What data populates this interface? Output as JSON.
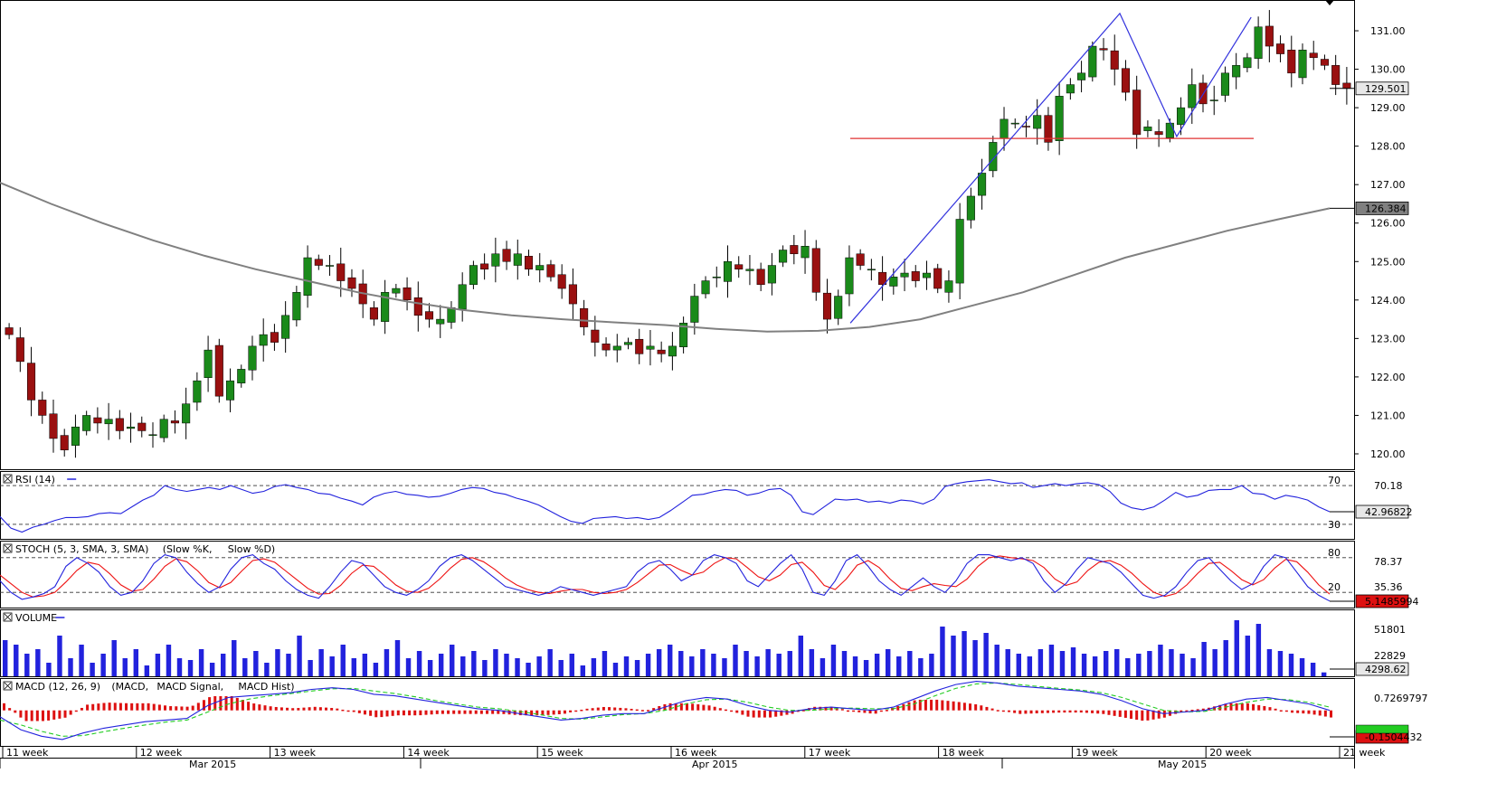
{
  "chart_data": [
    {
      "type": "candlestick",
      "panel": "price",
      "ylim": [
        119.6,
        131.8
      ],
      "yticks": [
        "131.00",
        "130.00",
        "129.00",
        "128.00",
        "127.00",
        "126.00",
        "125.00",
        "124.00",
        "123.00",
        "122.00",
        "121.00",
        "120.00"
      ],
      "ytick_values": [
        131,
        130,
        129,
        128,
        127,
        126,
        125,
        124,
        123,
        122,
        121,
        120
      ],
      "last_price_label": "129.501",
      "last_price": 129.501,
      "ma_label": "126.384",
      "ma_value": 126.384,
      "ma_path": [
        127.05,
        126.5,
        126.0,
        125.55,
        125.15,
        124.8,
        124.5,
        124.2,
        123.95,
        123.75,
        123.6,
        123.5,
        123.42,
        123.35,
        123.25,
        123.18,
        123.2,
        123.3,
        123.5,
        123.85,
        124.2,
        124.65,
        125.1,
        125.45,
        125.8,
        126.1,
        126.384
      ],
      "support_level": 128.2,
      "pattern_points": [
        {
          "x": 0.628,
          "y": 123.4
        },
        {
          "x": 0.827,
          "y": 131.45
        },
        {
          "x": 0.869,
          "y": 128.25
        },
        {
          "x": 0.924,
          "y": 131.35
        }
      ],
      "candles_closes": [
        123.1,
        122.4,
        121.4,
        121.0,
        120.4,
        120.1,
        120.7,
        121.0,
        120.8,
        120.9,
        120.6,
        120.7,
        120.6,
        120.5,
        120.9,
        120.8,
        121.3,
        121.9,
        122.7,
        121.5,
        121.9,
        122.2,
        122.8,
        123.1,
        122.9,
        123.6,
        124.2,
        125.1,
        124.9,
        124.9,
        124.5,
        124.3,
        123.9,
        123.5,
        124.2,
        124.3,
        124.0,
        123.6,
        123.5,
        123.5,
        123.8,
        124.4,
        124.9,
        124.8,
        125.2,
        125.0,
        125.2,
        124.8,
        124.9,
        124.6,
        124.3,
        123.9,
        123.3,
        122.9,
        122.7,
        122.8,
        122.9,
        122.6,
        122.8,
        122.6,
        122.8,
        123.4,
        124.1,
        124.5,
        124.6,
        125.0,
        124.8,
        124.8,
        124.4,
        124.9,
        125.3,
        125.2,
        125.4,
        124.2,
        123.5,
        124.1,
        125.1,
        124.9,
        124.8,
        124.4,
        124.6,
        124.7,
        124.5,
        124.7,
        124.3,
        124.5,
        126.1,
        126.7,
        127.3,
        128.1,
        128.7,
        128.6,
        128.5,
        128.8,
        128.1,
        129.3,
        129.6,
        129.9,
        130.6,
        130.5,
        130.0,
        129.4,
        128.3,
        128.5,
        128.3,
        128.6,
        129.0,
        129.6,
        129.1,
        129.2,
        129.9,
        130.1,
        130.3,
        131.1,
        130.6,
        130.4,
        129.9,
        130.5,
        130.3,
        130.1,
        129.6,
        129.5
      ],
      "tooltip_label": "Last Price"
    },
    {
      "type": "line",
      "panel": "rsi",
      "title": "RSI (14)",
      "levels": [
        "70",
        "30"
      ],
      "ytick": "70.18",
      "current_label": "42.96822",
      "ylim": [
        15,
        85
      ],
      "values": [
        38,
        26,
        22,
        27,
        30,
        34,
        37,
        37,
        38,
        41,
        42,
        41,
        48,
        55,
        60,
        70,
        66,
        64,
        66,
        68,
        66,
        70,
        66,
        62,
        64,
        69,
        71,
        68,
        66,
        62,
        61,
        57,
        54,
        50,
        58,
        62,
        64,
        61,
        60,
        58,
        59,
        62,
        66,
        68,
        67,
        63,
        61,
        57,
        54,
        50,
        44,
        38,
        33,
        31,
        36,
        37,
        38,
        36,
        37,
        35,
        37,
        44,
        52,
        60,
        61,
        64,
        66,
        65,
        60,
        62,
        66,
        67,
        60,
        43,
        40,
        48,
        56,
        55,
        56,
        53,
        54,
        52,
        55,
        54,
        51,
        56,
        69,
        72,
        74,
        75,
        76,
        74,
        72,
        73,
        68,
        70,
        72,
        70,
        72,
        73,
        71,
        64,
        52,
        47,
        45,
        48,
        55,
        63,
        58,
        60,
        65,
        66,
        66,
        70,
        62,
        61,
        56,
        60,
        58,
        55,
        48,
        43
      ]
    },
    {
      "type": "line",
      "panel": "stoch",
      "title": "STOCH (5, 3, SMA, 3, SMA)",
      "series": [
        {
          "name": "Slow %K",
          "color": "#2222dd"
        },
        {
          "name": "Slow %D",
          "color": "#ee1111"
        }
      ],
      "levels": [
        "80",
        "20"
      ],
      "ytick_top": "78.37",
      "ytick_mid": "35.36",
      "current_label": "5.1485994",
      "k_values": [
        40,
        20,
        8,
        12,
        18,
        30,
        65,
        80,
        70,
        55,
        30,
        15,
        20,
        40,
        70,
        85,
        80,
        55,
        35,
        20,
        30,
        60,
        80,
        85,
        70,
        60,
        40,
        25,
        15,
        10,
        30,
        55,
        75,
        70,
        50,
        30,
        20,
        15,
        25,
        40,
        65,
        80,
        85,
        75,
        60,
        45,
        30,
        25,
        20,
        15,
        20,
        30,
        25,
        20,
        15,
        20,
        25,
        30,
        55,
        70,
        75,
        60,
        40,
        50,
        75,
        85,
        80,
        70,
        40,
        30,
        50,
        70,
        85,
        60,
        20,
        15,
        40,
        75,
        85,
        65,
        40,
        25,
        15,
        30,
        45,
        30,
        20,
        40,
        70,
        85,
        85,
        80,
        75,
        80,
        70,
        40,
        20,
        35,
        60,
        80,
        75,
        70,
        55,
        35,
        15,
        10,
        15,
        30,
        55,
        75,
        80,
        60,
        40,
        25,
        35,
        65,
        85,
        80,
        55,
        30,
        15,
        5
      ],
      "d_values": [
        50,
        35,
        20,
        12,
        14,
        20,
        38,
        58,
        72,
        68,
        52,
        33,
        22,
        25,
        43,
        65,
        78,
        73,
        57,
        37,
        28,
        37,
        57,
        75,
        78,
        72,
        57,
        42,
        27,
        17,
        18,
        32,
        53,
        67,
        65,
        50,
        33,
        22,
        20,
        27,
        43,
        62,
        77,
        80,
        73,
        60,
        45,
        33,
        25,
        20,
        18,
        22,
        25,
        25,
        20,
        18,
        20,
        25,
        37,
        52,
        67,
        68,
        58,
        50,
        55,
        70,
        80,
        78,
        63,
        47,
        40,
        50,
        68,
        72,
        55,
        32,
        25,
        43,
        67,
        75,
        63,
        43,
        27,
        23,
        30,
        35,
        32,
        30,
        43,
        65,
        80,
        83,
        80,
        78,
        75,
        63,
        43,
        32,
        38,
        58,
        72,
        75,
        67,
        53,
        35,
        20,
        13,
        18,
        33,
        53,
        70,
        72,
        58,
        42,
        33,
        42,
        62,
        77,
        73,
        55,
        33,
        17
      ]
    },
    {
      "type": "bar",
      "panel": "volume",
      "title": "VOLUME",
      "ytick_top": "51801",
      "ytick_mid": "22829",
      "current_label": "4298.62",
      "ylim": [
        0,
        70000
      ],
      "values": [
        40000,
        35000,
        25000,
        30000,
        15000,
        45000,
        20000,
        35000,
        15000,
        25000,
        40000,
        20000,
        30000,
        12000,
        25000,
        35000,
        20000,
        18000,
        30000,
        15000,
        25000,
        40000,
        20000,
        28000,
        15000,
        30000,
        25000,
        45000,
        18000,
        30000,
        22000,
        35000,
        20000,
        25000,
        15000,
        30000,
        40000,
        20000,
        28000,
        18000,
        25000,
        35000,
        22000,
        28000,
        18000,
        30000,
        25000,
        20000,
        15000,
        22000,
        30000,
        18000,
        25000,
        12000,
        20000,
        28000,
        15000,
        22000,
        18000,
        25000,
        30000,
        35000,
        28000,
        22000,
        30000,
        25000,
        20000,
        35000,
        28000,
        22000,
        30000,
        25000,
        28000,
        45000,
        30000,
        20000,
        35000,
        28000,
        22000,
        18000,
        25000,
        30000,
        22000,
        28000,
        20000,
        25000,
        55000,
        45000,
        50000,
        40000,
        48000,
        35000,
        30000,
        25000,
        22000,
        30000,
        35000,
        28000,
        32000,
        25000,
        22000,
        28000,
        30000,
        20000,
        25000,
        28000,
        35000,
        30000,
        25000,
        20000,
        38000,
        30000,
        40000,
        62000,
        45000,
        58000,
        30000,
        28000,
        25000,
        20000,
        15000,
        4298
      ]
    },
    {
      "type": "line",
      "panel": "macd",
      "title": "MACD (12, 26, 9)",
      "series": [
        {
          "name": "MACD",
          "color": "#2222dd"
        },
        {
          "name": "MACD Signal",
          "color": "#22cc22"
        },
        {
          "name": "MACD Hist",
          "color": "#dd1111"
        }
      ],
      "ytick_top": "0.7269797",
      "ytick_mid": "-0.1504432",
      "ylim": [
        -1.1,
        1.0
      ],
      "macd_values": [
        -0.2,
        -0.6,
        -0.8,
        -0.9,
        -0.7,
        -0.55,
        -0.45,
        -0.35,
        -0.3,
        -0.25,
        0.15,
        0.4,
        0.45,
        0.5,
        0.55,
        0.65,
        0.7,
        0.65,
        0.5,
        0.45,
        0.35,
        0.25,
        0.15,
        0.05,
        0.0,
        -0.1,
        -0.2,
        -0.3,
        -0.25,
        -0.15,
        -0.1,
        -0.1,
        0.1,
        0.3,
        0.4,
        0.35,
        0.15,
        0.0,
        -0.05,
        0.05,
        0.1,
        0.05,
        0.0,
        0.1,
        0.35,
        0.6,
        0.8,
        0.9,
        0.85,
        0.75,
        0.7,
        0.65,
        0.6,
        0.5,
        0.3,
        0.05,
        -0.1,
        -0.05,
        0.0,
        0.2,
        0.35,
        0.4,
        0.3,
        0.2,
        0.0
      ],
      "signal_values": [
        -0.3,
        -0.45,
        -0.65,
        -0.8,
        -0.78,
        -0.66,
        -0.55,
        -0.45,
        -0.36,
        -0.3,
        -0.05,
        0.2,
        0.35,
        0.45,
        0.52,
        0.6,
        0.67,
        0.68,
        0.6,
        0.52,
        0.42,
        0.3,
        0.2,
        0.1,
        0.05,
        -0.03,
        -0.13,
        -0.25,
        -0.27,
        -0.2,
        -0.13,
        -0.1,
        0.0,
        0.2,
        0.33,
        0.35,
        0.25,
        0.1,
        0.0,
        0.0,
        0.05,
        0.07,
        0.05,
        0.05,
        0.2,
        0.45,
        0.68,
        0.82,
        0.85,
        0.8,
        0.74,
        0.68,
        0.63,
        0.55,
        0.4,
        0.2,
        0.0,
        -0.05,
        -0.03,
        0.1,
        0.25,
        0.35,
        0.33,
        0.25,
        0.1
      ]
    }
  ],
  "xaxis": {
    "weeks": [
      "11 week",
      "12 week",
      "13 week",
      "14 week",
      "15 week",
      "16 week",
      "17 week",
      "18 week",
      "19 week",
      "20 week",
      "21 week"
    ],
    "months": [
      "Mar 2015",
      "Apr 2015",
      "May 2015"
    ]
  },
  "colors": {
    "up_candle": "#1a8a1a",
    "down_candle": "#9a1010",
    "ma": "#808080",
    "pattern": "#3333dd",
    "support": "#e03030",
    "grid_dash": "#333333"
  }
}
